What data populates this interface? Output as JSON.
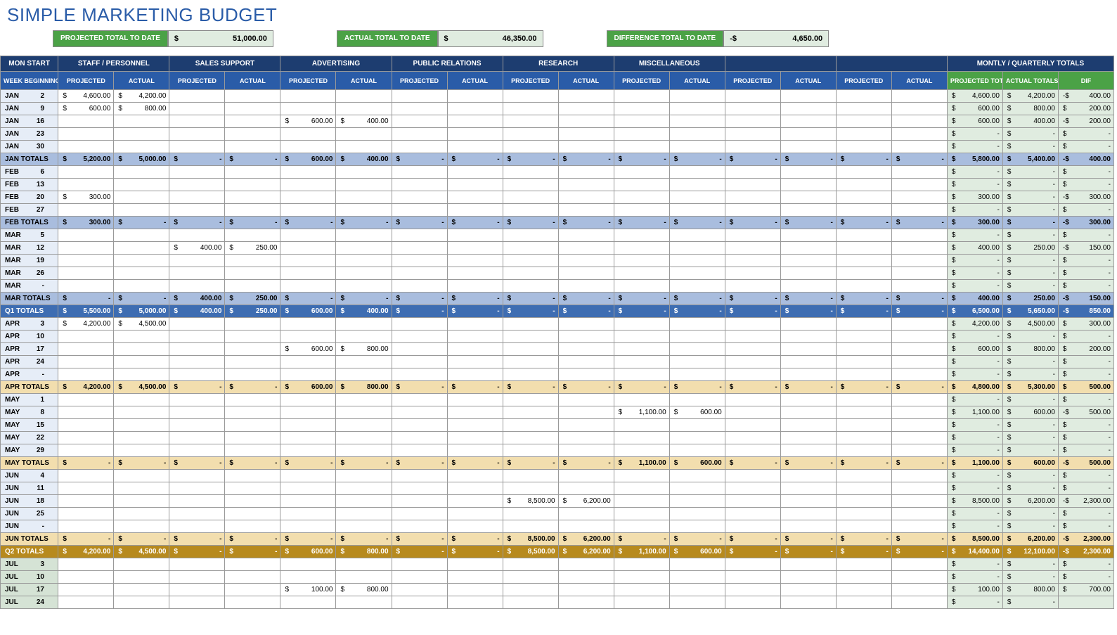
{
  "title": "SIMPLE MARKETING BUDGET",
  "summary": {
    "projected": {
      "label": "PROJECTED TOTAL TO DATE",
      "sign": "$",
      "value": "51,000.00"
    },
    "actual": {
      "label": "ACTUAL TOTAL TO DATE",
      "sign": "$",
      "value": "46,350.00"
    },
    "diff": {
      "label": "DIFFERENCE TOTAL TO DATE",
      "sign": "-$",
      "value": "4,650.00"
    }
  },
  "headers": {
    "monstart": "MON START",
    "groups": [
      "STAFF / PERSONNEL",
      "SALES SUPPORT",
      "ADVERTISING",
      "PUBLIC RELATIONS",
      "RESEARCH",
      "MISCELLANEOUS",
      "",
      ""
    ],
    "totals": "MONTLY / QUARTERLY TOTALS",
    "week": "WEEK BEGINNING",
    "proj": "PROJECTED",
    "act": "ACTUAL",
    "pt": "PROJECTED TOTALS",
    "at": "ACTUAL TOTALS",
    "dif": "DIF"
  },
  "colors": {
    "title": "#2a5ca8",
    "hdr_dark": "#1d3d70",
    "hdr_med": "#2a5ca8",
    "green": "#4ba246",
    "monthtot": "#a9bdde",
    "q1": "#3e6db2",
    "q2tot": "#f2deae",
    "q2": "#b78a1e",
    "jul": "#d5e3d5",
    "sumval": "#e0ece0"
  },
  "rows": [
    {
      "type": "w",
      "m": "JAN",
      "d": "2",
      "v": [
        "4,600.00",
        "4,200.00",
        "",
        "",
        "",
        "",
        "",
        "",
        "",
        "",
        "",
        "",
        "",
        "",
        "",
        ""
      ],
      "t": [
        "4,600.00",
        "4,200.00",
        "400.00"
      ],
      "ts": "-$"
    },
    {
      "type": "w",
      "m": "JAN",
      "d": "9",
      "v": [
        "600.00",
        "800.00",
        "",
        "",
        "",
        "",
        "",
        "",
        "",
        "",
        "",
        "",
        "",
        "",
        "",
        ""
      ],
      "t": [
        "600.00",
        "800.00",
        "200.00"
      ],
      "ts": "$"
    },
    {
      "type": "w",
      "m": "JAN",
      "d": "16",
      "v": [
        "",
        "",
        "",
        "",
        "600.00",
        "400.00",
        "",
        "",
        "",
        "",
        "",
        "",
        "",
        "",
        "",
        ""
      ],
      "t": [
        "600.00",
        "400.00",
        "200.00"
      ],
      "ts": "-$"
    },
    {
      "type": "w",
      "m": "JAN",
      "d": "23",
      "v": [
        "",
        "",
        "",
        "",
        "",
        "",
        "",
        "",
        "",
        "",
        "",
        "",
        "",
        "",
        "",
        ""
      ],
      "t": [
        "-",
        "-",
        "-"
      ]
    },
    {
      "type": "w",
      "m": "JAN",
      "d": "30",
      "v": [
        "",
        "",
        "",
        "",
        "",
        "",
        "",
        "",
        "",
        "",
        "",
        "",
        "",
        "",
        "",
        ""
      ],
      "t": [
        "-",
        "-",
        "-"
      ]
    },
    {
      "type": "mt",
      "m": "JAN TOTALS",
      "v": [
        "5,200.00",
        "5,000.00",
        "-",
        "-",
        "600.00",
        "400.00",
        "-",
        "-",
        "-",
        "-",
        "-",
        "-",
        "-",
        "-",
        "-",
        "-"
      ],
      "t": [
        "5,800.00",
        "5,400.00",
        "400.00"
      ],
      "ts": "-$"
    },
    {
      "type": "w",
      "m": "FEB",
      "d": "6",
      "v": [
        "",
        "",
        "",
        "",
        "",
        "",
        "",
        "",
        "",
        "",
        "",
        "",
        "",
        "",
        "",
        ""
      ],
      "t": [
        "-",
        "-",
        "-"
      ]
    },
    {
      "type": "w",
      "m": "FEB",
      "d": "13",
      "v": [
        "",
        "",
        "",
        "",
        "",
        "",
        "",
        "",
        "",
        "",
        "",
        "",
        "",
        "",
        "",
        ""
      ],
      "t": [
        "-",
        "-",
        "-"
      ]
    },
    {
      "type": "w",
      "m": "FEB",
      "d": "20",
      "v": [
        "300.00",
        "",
        "",
        "",
        "",
        "",
        "",
        "",
        "",
        "",
        "",
        "",
        "",
        "",
        "",
        ""
      ],
      "t": [
        "300.00",
        "-",
        "300.00"
      ],
      "ts": "-$"
    },
    {
      "type": "w",
      "m": "FEB",
      "d": "27",
      "v": [
        "",
        "",
        "",
        "",
        "",
        "",
        "",
        "",
        "",
        "",
        "",
        "",
        "",
        "",
        "",
        ""
      ],
      "t": [
        "-",
        "-",
        "-"
      ]
    },
    {
      "type": "mt",
      "m": "FEB TOTALS",
      "v": [
        "300.00",
        "-",
        "-",
        "-",
        "-",
        "-",
        "-",
        "-",
        "-",
        "-",
        "-",
        "-",
        "-",
        "-",
        "-",
        "-"
      ],
      "t": [
        "300.00",
        "-",
        "300.00"
      ],
      "ts": "-$"
    },
    {
      "type": "w",
      "m": "MAR",
      "d": "5",
      "v": [
        "",
        "",
        "",
        "",
        "",
        "",
        "",
        "",
        "",
        "",
        "",
        "",
        "",
        "",
        "",
        ""
      ],
      "t": [
        "-",
        "-",
        "-"
      ]
    },
    {
      "type": "w",
      "m": "MAR",
      "d": "12",
      "v": [
        "",
        "",
        "400.00",
        "250.00",
        "",
        "",
        "",
        "",
        "",
        "",
        "",
        "",
        "",
        "",
        "",
        ""
      ],
      "t": [
        "400.00",
        "250.00",
        "150.00"
      ],
      "ts": "-$"
    },
    {
      "type": "w",
      "m": "MAR",
      "d": "19",
      "v": [
        "",
        "",
        "",
        "",
        "",
        "",
        "",
        "",
        "",
        "",
        "",
        "",
        "",
        "",
        "",
        ""
      ],
      "t": [
        "-",
        "-",
        "-"
      ]
    },
    {
      "type": "w",
      "m": "MAR",
      "d": "26",
      "v": [
        "",
        "",
        "",
        "",
        "",
        "",
        "",
        "",
        "",
        "",
        "",
        "",
        "",
        "",
        "",
        ""
      ],
      "t": [
        "-",
        "-",
        "-"
      ]
    },
    {
      "type": "w",
      "m": "MAR",
      "d": "-",
      "v": [
        "",
        "",
        "",
        "",
        "",
        "",
        "",
        "",
        "",
        "",
        "",
        "",
        "",
        "",
        "",
        ""
      ],
      "t": [
        "-",
        "-",
        "-"
      ]
    },
    {
      "type": "mt",
      "m": "MAR TOTALS",
      "v": [
        "-",
        "-",
        "400.00",
        "250.00",
        "-",
        "-",
        "-",
        "-",
        "-",
        "-",
        "-",
        "-",
        "-",
        "-",
        "-",
        "-"
      ],
      "t": [
        "400.00",
        "250.00",
        "150.00"
      ],
      "ts": "-$"
    },
    {
      "type": "q1",
      "m": "Q1 TOTALS",
      "v": [
        "5,500.00",
        "5,000.00",
        "400.00",
        "250.00",
        "600.00",
        "400.00",
        "-",
        "-",
        "-",
        "-",
        "-",
        "-",
        "-",
        "-",
        "-",
        "-"
      ],
      "t": [
        "6,500.00",
        "5,650.00",
        "850.00"
      ],
      "ts": "-$"
    },
    {
      "type": "w",
      "m": "APR",
      "d": "3",
      "v": [
        "4,200.00",
        "4,500.00",
        "",
        "",
        "",
        "",
        "",
        "",
        "",
        "",
        "",
        "",
        "",
        "",
        "",
        ""
      ],
      "t": [
        "4,200.00",
        "4,500.00",
        "300.00"
      ],
      "ts": "$"
    },
    {
      "type": "w",
      "m": "APR",
      "d": "10",
      "v": [
        "",
        "",
        "",
        "",
        "",
        "",
        "",
        "",
        "",
        "",
        "",
        "",
        "",
        "",
        "",
        ""
      ],
      "t": [
        "-",
        "-",
        "-"
      ]
    },
    {
      "type": "w",
      "m": "APR",
      "d": "17",
      "v": [
        "",
        "",
        "",
        "",
        "600.00",
        "800.00",
        "",
        "",
        "",
        "",
        "",
        "",
        "",
        "",
        "",
        ""
      ],
      "t": [
        "600.00",
        "800.00",
        "200.00"
      ],
      "ts": "$"
    },
    {
      "type": "w",
      "m": "APR",
      "d": "24",
      "v": [
        "",
        "",
        "",
        "",
        "",
        "",
        "",
        "",
        "",
        "",
        "",
        "",
        "",
        "",
        "",
        ""
      ],
      "t": [
        "-",
        "-",
        "-"
      ]
    },
    {
      "type": "w",
      "m": "APR",
      "d": "-",
      "v": [
        "",
        "",
        "",
        "",
        "",
        "",
        "",
        "",
        "",
        "",
        "",
        "",
        "",
        "",
        "",
        ""
      ],
      "t": [
        "-",
        "-",
        "-"
      ]
    },
    {
      "type": "at",
      "m": "APR TOTALS",
      "v": [
        "4,200.00",
        "4,500.00",
        "-",
        "-",
        "600.00",
        "800.00",
        "-",
        "-",
        "-",
        "-",
        "-",
        "-",
        "-",
        "-",
        "-",
        "-"
      ],
      "t": [
        "4,800.00",
        "5,300.00",
        "500.00"
      ],
      "ts": "$"
    },
    {
      "type": "w",
      "m": "MAY",
      "d": "1",
      "v": [
        "",
        "",
        "",
        "",
        "",
        "",
        "",
        "",
        "",
        "",
        "",
        "",
        "",
        "",
        "",
        ""
      ],
      "t": [
        "-",
        "-",
        "-"
      ]
    },
    {
      "type": "w",
      "m": "MAY",
      "d": "8",
      "v": [
        "",
        "",
        "",
        "",
        "",
        "",
        "",
        "",
        "",
        "",
        "1,100.00",
        "600.00",
        "",
        "",
        "",
        ""
      ],
      "t": [
        "1,100.00",
        "600.00",
        "500.00"
      ],
      "ts": "-$"
    },
    {
      "type": "w",
      "m": "MAY",
      "d": "15",
      "v": [
        "",
        "",
        "",
        "",
        "",
        "",
        "",
        "",
        "",
        "",
        "",
        "",
        "",
        "",
        "",
        ""
      ],
      "t": [
        "-",
        "-",
        "-"
      ]
    },
    {
      "type": "w",
      "m": "MAY",
      "d": "22",
      "v": [
        "",
        "",
        "",
        "",
        "",
        "",
        "",
        "",
        "",
        "",
        "",
        "",
        "",
        "",
        "",
        ""
      ],
      "t": [
        "-",
        "-",
        "-"
      ]
    },
    {
      "type": "w",
      "m": "MAY",
      "d": "29",
      "v": [
        "",
        "",
        "",
        "",
        "",
        "",
        "",
        "",
        "",
        "",
        "",
        "",
        "",
        "",
        "",
        ""
      ],
      "t": [
        "-",
        "-",
        "-"
      ]
    },
    {
      "type": "at",
      "m": "MAY TOTALS",
      "v": [
        "-",
        "-",
        "-",
        "-",
        "-",
        "-",
        "-",
        "-",
        "-",
        "-",
        "1,100.00",
        "600.00",
        "-",
        "-",
        "-",
        "-"
      ],
      "t": [
        "1,100.00",
        "600.00",
        "500.00"
      ],
      "ts": "-$"
    },
    {
      "type": "w",
      "m": "JUN",
      "d": "4",
      "v": [
        "",
        "",
        "",
        "",
        "",
        "",
        "",
        "",
        "",
        "",
        "",
        "",
        "",
        "",
        "",
        ""
      ],
      "t": [
        "-",
        "-",
        "-"
      ]
    },
    {
      "type": "w",
      "m": "JUN",
      "d": "11",
      "v": [
        "",
        "",
        "",
        "",
        "",
        "",
        "",
        "",
        "",
        "",
        "",
        "",
        "",
        "",
        "",
        ""
      ],
      "t": [
        "-",
        "-",
        "-"
      ]
    },
    {
      "type": "w",
      "m": "JUN",
      "d": "18",
      "v": [
        "",
        "",
        "",
        "",
        "",
        "",
        "",
        "",
        "8,500.00",
        "6,200.00",
        "",
        "",
        "",
        "",
        "",
        ""
      ],
      "t": [
        "8,500.00",
        "6,200.00",
        "2,300.00"
      ],
      "ts": "-$"
    },
    {
      "type": "w",
      "m": "JUN",
      "d": "25",
      "v": [
        "",
        "",
        "",
        "",
        "",
        "",
        "",
        "",
        "",
        "",
        "",
        "",
        "",
        "",
        "",
        ""
      ],
      "t": [
        "-",
        "-",
        "-"
      ]
    },
    {
      "type": "w",
      "m": "JUN",
      "d": "-",
      "v": [
        "",
        "",
        "",
        "",
        "",
        "",
        "",
        "",
        "",
        "",
        "",
        "",
        "",
        "",
        "",
        ""
      ],
      "t": [
        "-",
        "-",
        "-"
      ]
    },
    {
      "type": "at",
      "m": "JUN TOTALS",
      "v": [
        "-",
        "-",
        "-",
        "-",
        "-",
        "-",
        "-",
        "-",
        "8,500.00",
        "6,200.00",
        "-",
        "-",
        "-",
        "-",
        "-",
        "-"
      ],
      "t": [
        "8,500.00",
        "6,200.00",
        "2,300.00"
      ],
      "ts": "-$"
    },
    {
      "type": "q2",
      "m": "Q2 TOTALS",
      "v": [
        "4,200.00",
        "4,500.00",
        "-",
        "-",
        "600.00",
        "800.00",
        "-",
        "-",
        "8,500.00",
        "6,200.00",
        "1,100.00",
        "600.00",
        "-",
        "-",
        "-",
        "-"
      ],
      "t": [
        "14,400.00",
        "12,100.00",
        "2,300.00"
      ],
      "ts": "-$"
    },
    {
      "type": "j",
      "m": "JUL",
      "d": "3",
      "v": [
        "",
        "",
        "",
        "",
        "",
        "",
        "",
        "",
        "",
        "",
        "",
        "",
        "",
        "",
        "",
        ""
      ],
      "t": [
        "-",
        "-",
        "-"
      ]
    },
    {
      "type": "j",
      "m": "JUL",
      "d": "10",
      "v": [
        "",
        "",
        "",
        "",
        "",
        "",
        "",
        "",
        "",
        "",
        "",
        "",
        "",
        "",
        "",
        ""
      ],
      "t": [
        "-",
        "-",
        "-"
      ]
    },
    {
      "type": "j",
      "m": "JUL",
      "d": "17",
      "v": [
        "",
        "",
        "",
        "",
        "100.00",
        "800.00",
        "",
        "",
        "",
        "",
        "",
        "",
        "",
        "",
        "",
        ""
      ],
      "t": [
        "100.00",
        "800.00",
        "700.00"
      ],
      "ts": "$"
    },
    {
      "type": "j",
      "m": "JUL",
      "d": "24",
      "v": [
        "",
        "",
        "",
        "",
        "",
        "",
        "",
        "",
        "",
        "",
        "",
        "",
        "",
        "",
        "",
        ""
      ],
      "t": [
        "-",
        "-",
        ""
      ]
    }
  ]
}
